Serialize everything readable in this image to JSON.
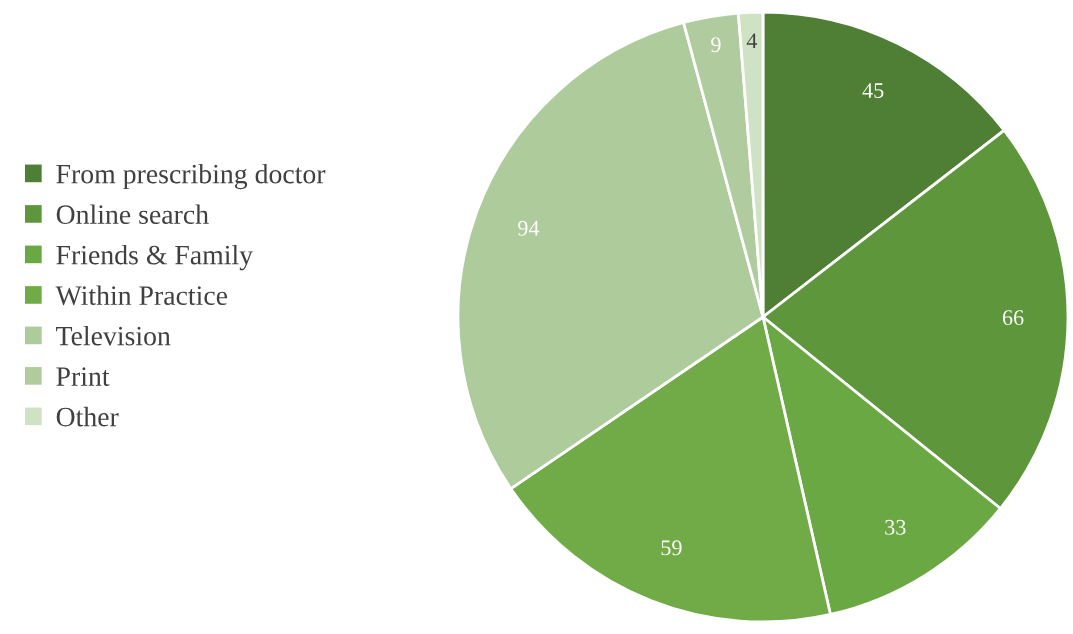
{
  "chart_data": {
    "type": "pie",
    "categories": [
      "From prescribing doctor",
      "Online search",
      "Friends & Family",
      "Within Practice",
      "Television",
      "Print",
      "Other"
    ],
    "values": [
      45,
      66,
      33,
      59,
      94,
      9,
      4
    ],
    "colors": [
      "#4e7f34",
      "#5e963b",
      "#6aa843",
      "#70ab47",
      "#aecb9b",
      "#b0cc9f",
      "#cfe2c4"
    ],
    "data_labels": true,
    "legend": "left"
  }
}
